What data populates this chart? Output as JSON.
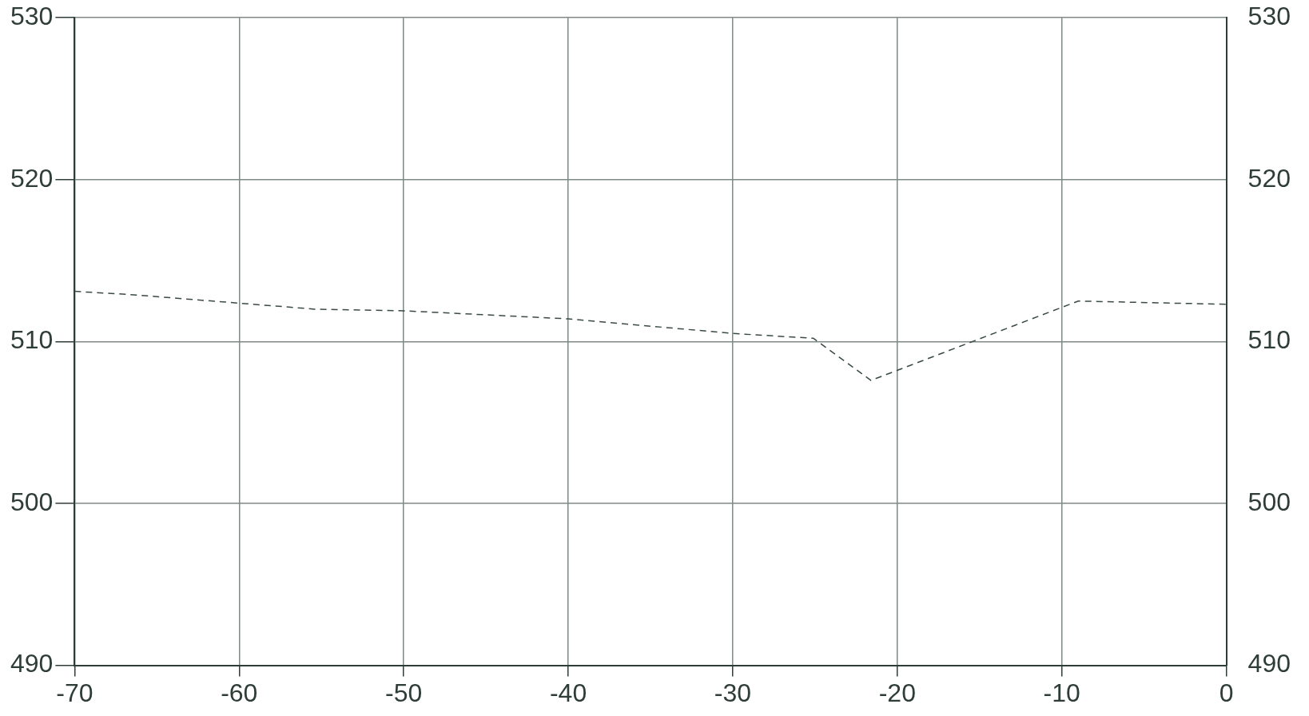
{
  "chart_data": {
    "type": "line",
    "x": [
      -70,
      -66.6,
      -55.4,
      -50,
      -40,
      -30,
      -25.1,
      -21.6,
      -9,
      0
    ],
    "series": [
      {
        "color": "#3a4a44",
        "values": [
          513.1,
          512.9,
          512.0,
          511.9,
          511.4,
          510.5,
          510.2,
          507.6,
          512.5,
          512.3
        ]
      }
    ],
    "xlim": [
      -70,
      0
    ],
    "xticks": [
      -70,
      -60,
      -50,
      -40,
      -30,
      -20,
      -10,
      0
    ],
    "ylim": [
      490,
      530
    ],
    "yticks": [
      490,
      500,
      510,
      520,
      530
    ],
    "y2lim": [
      490,
      530
    ],
    "y2ticks": [
      490,
      500,
      510,
      520,
      530
    ],
    "grid": true,
    "legend": false,
    "marker": "none",
    "line_style": "dashed"
  }
}
